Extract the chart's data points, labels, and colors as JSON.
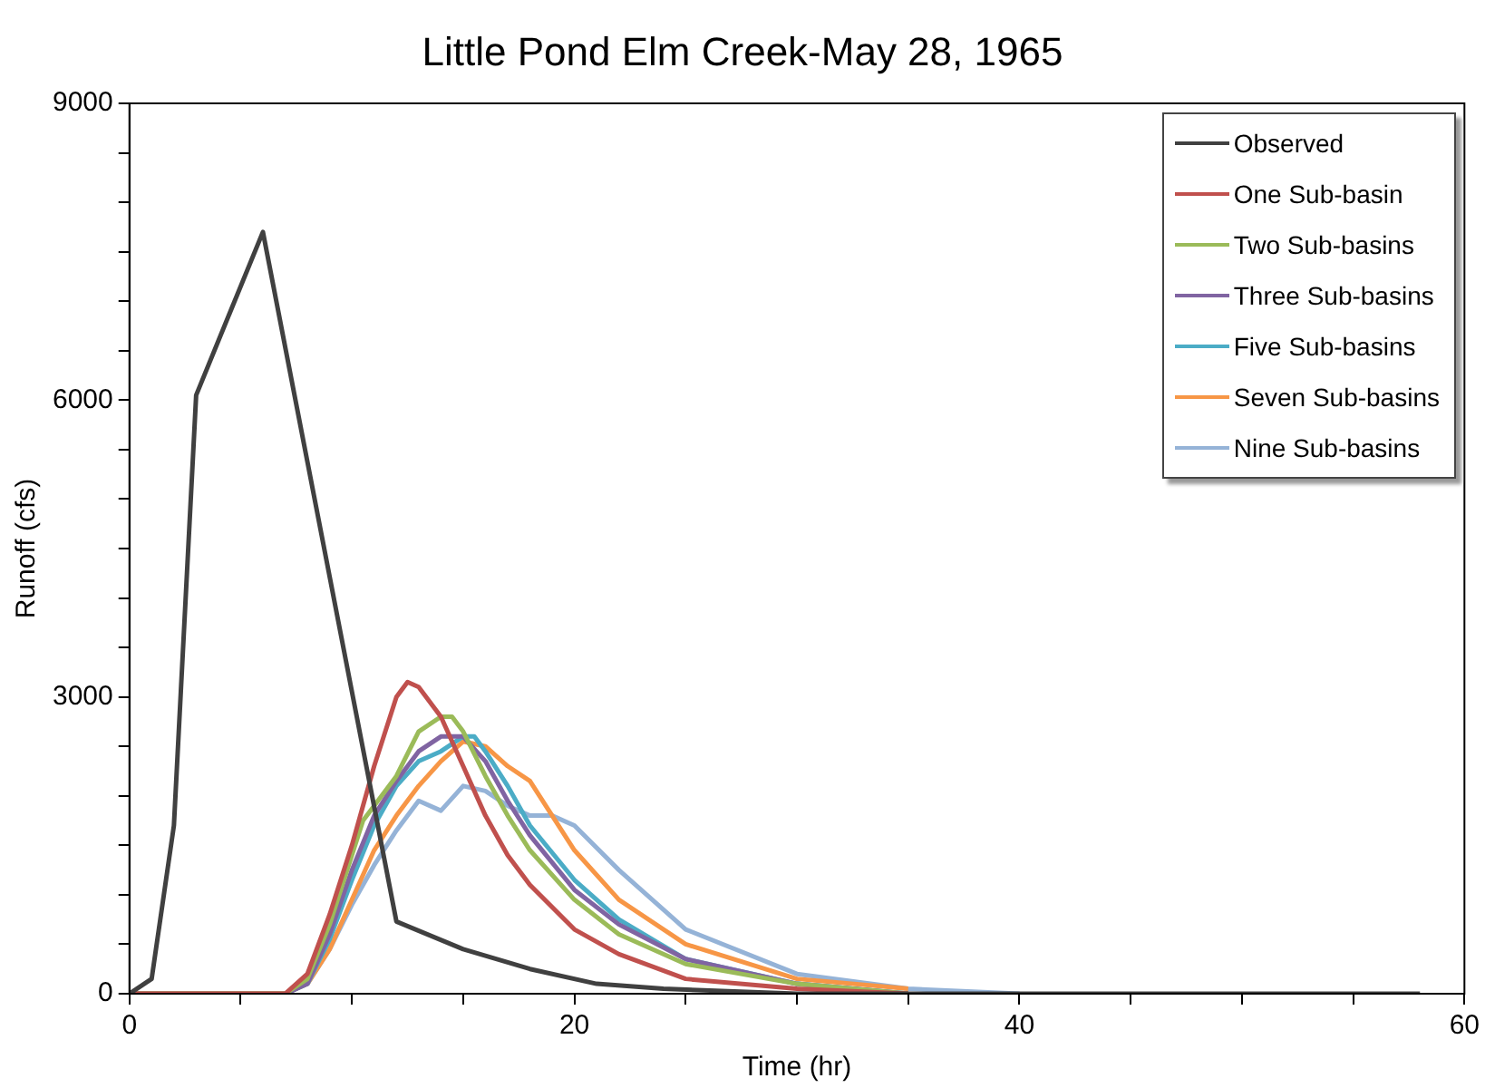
{
  "chart_data": {
    "type": "line",
    "title": "Little Pond Elm Creek-May 28, 1965",
    "xlabel": "Time (hr)",
    "ylabel": "Runoff (cfs)",
    "xlim": [
      0,
      60
    ],
    "xticks": [
      0,
      {
        "value": 5,
        "label": null
      },
      {
        "value": 10,
        "label": null
      },
      {
        "value": 15,
        "label": null
      },
      20,
      {
        "value": 25,
        "label": null
      },
      {
        "value": 30,
        "label": null
      },
      {
        "value": 35,
        "label": null
      },
      40,
      {
        "value": 45,
        "label": null
      },
      {
        "value": 50,
        "label": null
      },
      {
        "value": 55,
        "label": null
      },
      60
    ],
    "ylim": [
      0,
      9000
    ],
    "yticks": [
      0,
      {
        "value": 500,
        "label": null
      },
      {
        "value": 1000,
        "label": null
      },
      {
        "value": 1500,
        "label": null
      },
      {
        "value": 2000,
        "label": null
      },
      {
        "value": 2500,
        "label": null
      },
      3000,
      {
        "value": 3500,
        "label": null
      },
      {
        "value": 4000,
        "label": null
      },
      {
        "value": 4500,
        "label": null
      },
      {
        "value": 5000,
        "label": null
      },
      {
        "value": 5500,
        "label": null
      },
      6000,
      {
        "value": 6500,
        "label": null
      },
      {
        "value": 7000,
        "label": null
      },
      {
        "value": 7500,
        "label": null
      },
      {
        "value": 8000,
        "label": null
      },
      {
        "value": 8500,
        "label": null
      },
      9000
    ],
    "grid": false,
    "legend": "top right",
    "marker": "none",
    "line_style": "solid",
    "series": [
      {
        "name": "Observed",
        "color": "#404040",
        "x": [
          0,
          1,
          2,
          3,
          6,
          12,
          15,
          18,
          21,
          24,
          30,
          58
        ],
        "values": [
          0,
          150,
          1700,
          6050,
          7700,
          730,
          450,
          250,
          100,
          50,
          0,
          0
        ]
      },
      {
        "name": "One Sub-basin",
        "color": "#c0504d",
        "x": [
          0,
          6.5,
          7,
          8,
          9,
          10,
          11,
          12,
          12.5,
          13,
          14,
          15,
          16,
          17,
          18,
          20,
          22,
          25,
          30,
          35
        ],
        "values": [
          0,
          0,
          0,
          200,
          800,
          1500,
          2300,
          3000,
          3150,
          3100,
          2800,
          2300,
          1800,
          1400,
          1100,
          650,
          400,
          150,
          50,
          0
        ]
      },
      {
        "name": "Two Sub-basins",
        "color": "#9bbb59",
        "x": [
          0,
          6.5,
          7,
          8,
          9,
          10,
          10.5,
          11,
          12,
          13,
          14,
          14.5,
          15,
          16,
          17,
          18,
          20,
          22,
          25,
          30,
          35
        ],
        "values": [
          0,
          0,
          0,
          150,
          700,
          1400,
          1750,
          1900,
          2200,
          2650,
          2800,
          2800,
          2650,
          2200,
          1800,
          1450,
          950,
          600,
          300,
          100,
          0
        ]
      },
      {
        "name": "Three Sub-basins",
        "color": "#8064a2",
        "x": [
          0,
          6.5,
          7,
          8,
          9,
          10,
          11,
          12,
          13,
          14,
          15,
          16,
          17,
          18,
          20,
          22,
          25,
          30,
          35
        ],
        "values": [
          0,
          0,
          0,
          100,
          600,
          1250,
          1800,
          2150,
          2450,
          2600,
          2600,
          2350,
          1950,
          1600,
          1050,
          700,
          350,
          100,
          0
        ]
      },
      {
        "name": "Five Sub-basins",
        "color": "#4bacc6",
        "x": [
          7,
          8,
          9,
          10,
          11,
          12,
          13,
          14,
          15,
          15.5,
          16,
          17,
          18,
          20,
          22,
          25,
          30,
          35
        ],
        "values": [
          0,
          100,
          550,
          1150,
          1700,
          2100,
          2350,
          2450,
          2600,
          2600,
          2450,
          2100,
          1700,
          1150,
          750,
          350,
          100,
          0
        ]
      },
      {
        "name": "Seven Sub-basins",
        "color": "#f79646",
        "x": [
          0,
          6.5,
          7,
          8,
          9,
          10,
          11,
          12,
          13,
          14,
          15,
          16,
          17,
          18,
          19,
          20,
          22,
          25,
          30,
          35
        ],
        "values": [
          0,
          0,
          0,
          100,
          450,
          950,
          1450,
          1800,
          2100,
          2350,
          2550,
          2500,
          2300,
          2150,
          1800,
          1450,
          950,
          500,
          150,
          50
        ]
      },
      {
        "name": "Nine Sub-basins",
        "color": "#95b3d7",
        "x": [
          0,
          6.5,
          7,
          8,
          9,
          10,
          11,
          12,
          13,
          14,
          15,
          16,
          17,
          18,
          19,
          20,
          22,
          25,
          30,
          35,
          40
        ],
        "values": [
          0,
          0,
          0,
          100,
          450,
          900,
          1300,
          1650,
          1950,
          1850,
          2100,
          2050,
          1900,
          1800,
          1800,
          1700,
          1250,
          650,
          200,
          50,
          0
        ]
      }
    ]
  }
}
